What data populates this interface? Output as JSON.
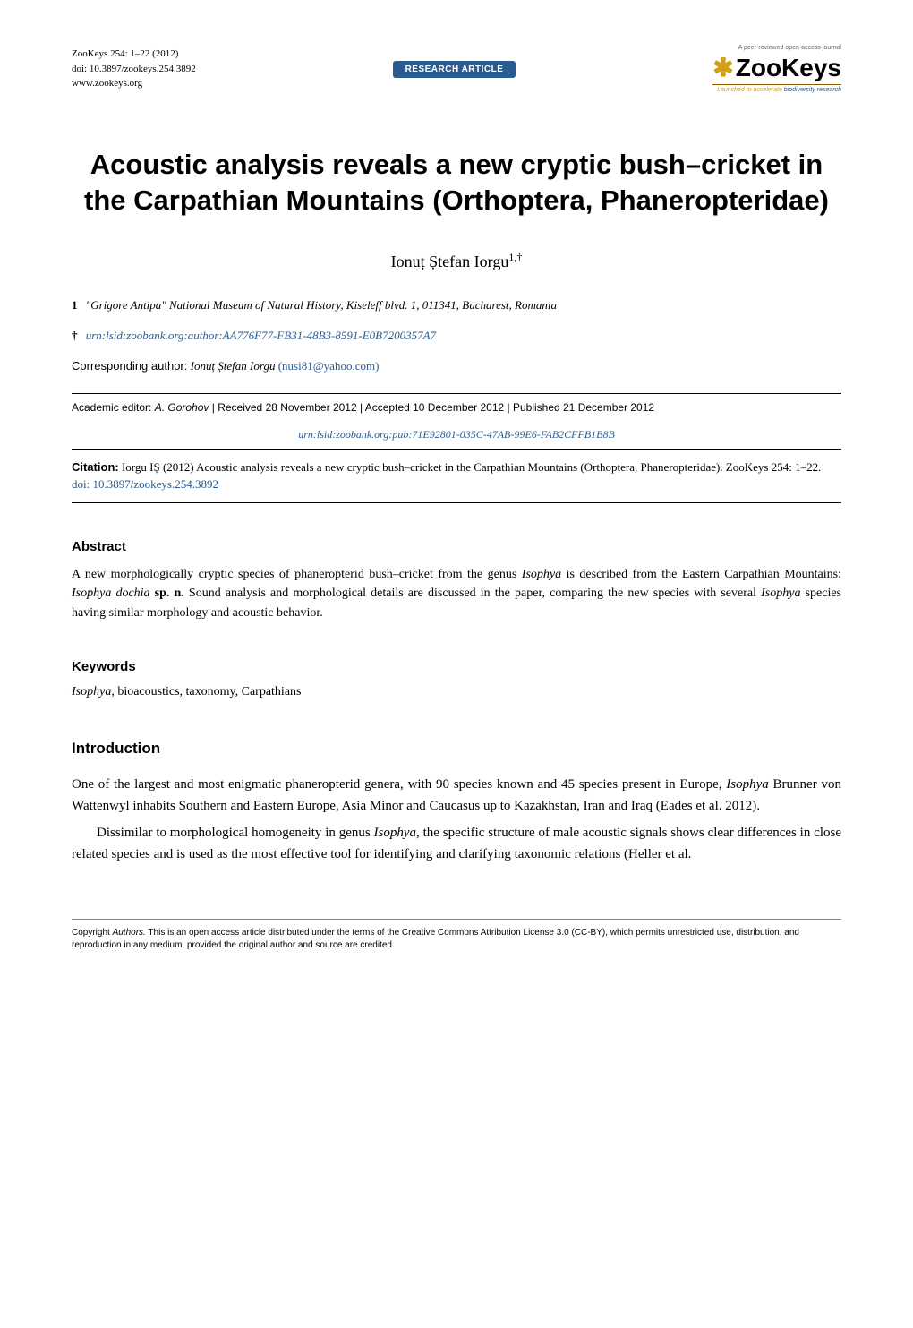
{
  "header": {
    "journal_line": "ZooKeys 254: 1–22 (2012)",
    "doi_line": "doi: 10.3897/zookeys.254.3892",
    "url": "www.zookeys.org",
    "badge": "RESEARCH ARTICLE",
    "logo_tagline": "A peer-reviewed open-access journal",
    "logo_text": "ZooKeys",
    "logo_subline_orange": "Launched to accelerate",
    "logo_subline_blue": " biodiversity research"
  },
  "title": "Acoustic analysis reveals a new cryptic bush–cricket in the Carpathian Mountains (Orthoptera, Phaneropteridae)",
  "author": {
    "name": "Ionuț Ștefan Iorgu",
    "sup": "1,†"
  },
  "affiliation": {
    "num": "1",
    "text": "\"Grigore Antipa\" National Museum of Natural History, Kiseleff blvd. 1, 011341, Bucharest, Romania"
  },
  "author_urn": {
    "dagger": "†",
    "urn": "urn:lsid:zoobank.org:author:AA776F77-FB31-48B3-8591-E0B7200357A7"
  },
  "corresponding": {
    "label": "Corresponding author:",
    "name": "Ionuț Ștefan Iorgu",
    "email": "(nusi81@yahoo.com)"
  },
  "editor_line": {
    "prefix": "Academic editor:",
    "editor": "A. Gorohov",
    "rest": " | Received 28 November 2012 | Accepted 10 December 2012 | Published 21 December 2012"
  },
  "pub_urn": "urn:lsid:zoobank.org:pub:71E92801-035C-47AB-99E6-FAB2CFFB1B8B",
  "citation": {
    "label": "Citation:",
    "text": " Iorgu IȘ (2012) Acoustic analysis reveals a new cryptic bush–cricket in the Carpathian Mountains (Orthoptera, Phaneropteridae). ZooKeys 254: 1–22. ",
    "doi_prefix": "doi: ",
    "doi": "10.3897/zookeys.254.3892"
  },
  "abstract": {
    "heading": "Abstract",
    "text_parts": [
      "A new morphologically cryptic species of phaneropterid bush–cricket from the genus ",
      "Isophya",
      " is described from the Eastern Carpathian Mountains: ",
      "Isophya dochia",
      " ",
      "sp. n.",
      " Sound analysis and morphological details are discussed in the paper, comparing the new species with several ",
      "Isophya",
      " species having similar morphology and acoustic behavior."
    ]
  },
  "keywords": {
    "heading": "Keywords",
    "genus": "Isophya",
    "rest": ", bioacoustics, taxonomy, Carpathians"
  },
  "introduction": {
    "heading": "Introduction",
    "para1_parts": [
      "One of the largest and most enigmatic phaneropterid genera, with 90 species known and 45 species present in Europe, ",
      "Isophya",
      " Brunner von Wattenwyl inhabits Southern and Eastern Europe, Asia Minor and Caucasus up to Kazakhstan, Iran and Iraq (Eades et al. 2012)."
    ],
    "para2_parts": [
      "Dissimilar to morphological homogeneity in genus ",
      "Isophya",
      ", the specific structure of male acoustic signals shows clear differences in close related species and is used as the most effective tool for identifying and clarifying taxonomic relations (Heller et al."
    ]
  },
  "footer": {
    "prefix": "Copyright ",
    "authors": "Authors.",
    "rest": " This is an open access article distributed under the terms of the Creative Commons Attribution License 3.0 (CC-BY), which permits unrestricted use, distribution, and reproduction in any medium, provided the original author and source are credited."
  },
  "colors": {
    "badge_bg": "#2b5b8f",
    "link": "#2b5b8f",
    "accent": "#d4a017"
  }
}
